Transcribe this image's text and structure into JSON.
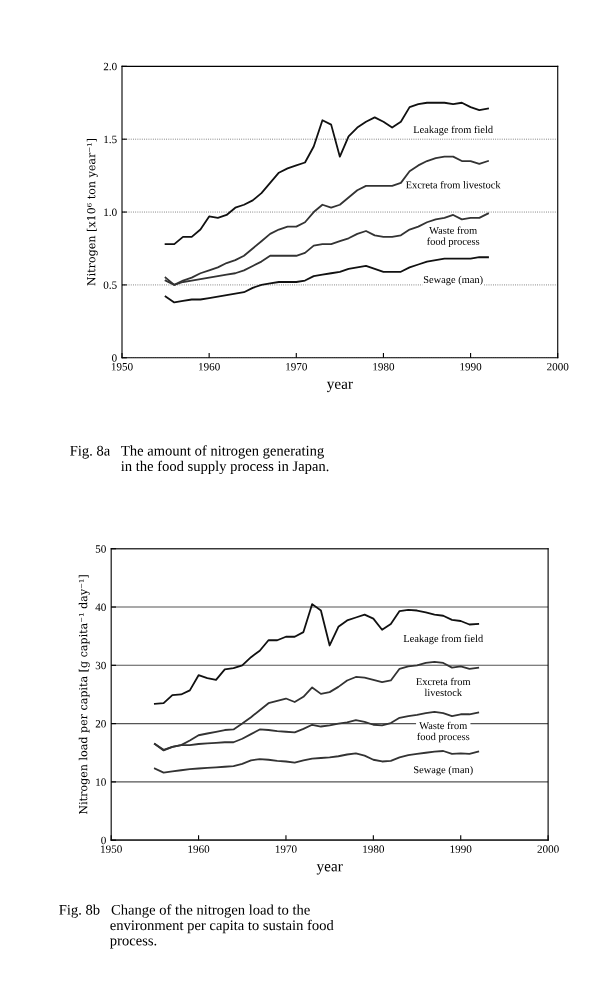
{
  "chart_data": [
    {
      "type": "line",
      "title": "Fig. 8a   The amount of nitrogen generating\n              in the food supply process in Japan.",
      "xlabel": "year",
      "ylabel": "Nitrogen [x10⁶ ton year⁻¹]",
      "xlim": [
        1950,
        2000
      ],
      "xticks": [
        1950,
        1960,
        1970,
        1980,
        1990,
        2000
      ],
      "ylim": [
        0,
        2.0
      ],
      "yticks": [
        0,
        0.5,
        {
          "value": 1.0,
          "label": "1.0"
        },
        1.5,
        {
          "value": 2.0,
          "label": "2.0"
        }
      ],
      "grid": "y",
      "x": [
        1955,
        1956,
        1957,
        1958,
        1959,
        1960,
        1961,
        1962,
        1963,
        1964,
        1965,
        1966,
        1967,
        1968,
        1969,
        1970,
        1971,
        1972,
        1973,
        1974,
        1975,
        1976,
        1977,
        1978,
        1979,
        1980,
        1981,
        1982,
        1983,
        1984,
        1985,
        1986,
        1987,
        1988,
        1989,
        1990,
        1991,
        1992
      ],
      "series": [
        {
          "name": "Leakage from field",
          "color": "#111111",
          "values": [
            0.78,
            0.78,
            0.83,
            0.83,
            0.88,
            0.97,
            0.96,
            0.98,
            1.03,
            1.05,
            1.08,
            1.13,
            1.2,
            1.27,
            1.3,
            1.32,
            1.34,
            1.45,
            1.63,
            1.6,
            1.38,
            1.52,
            1.58,
            1.62,
            1.65,
            1.62,
            1.58,
            1.62,
            1.72,
            1.74,
            1.75,
            1.75,
            1.75,
            1.74,
            1.75,
            1.72,
            1.7,
            1.71
          ]
        },
        {
          "name": "Excreta from livestock",
          "color": "#333333",
          "values": [
            0.55,
            0.5,
            0.53,
            0.55,
            0.58,
            0.6,
            0.62,
            0.65,
            0.67,
            0.7,
            0.75,
            0.8,
            0.85,
            0.88,
            0.9,
            0.9,
            0.93,
            1.0,
            1.05,
            1.03,
            1.05,
            1.1,
            1.15,
            1.18,
            1.18,
            1.18,
            1.18,
            1.2,
            1.28,
            1.32,
            1.35,
            1.37,
            1.38,
            1.38,
            1.35,
            1.35,
            1.33,
            1.35
          ]
        },
        {
          "name": "Waste from\nfood process",
          "color": "#333333",
          "values": [
            0.53,
            0.5,
            0.52,
            0.53,
            0.54,
            0.55,
            0.56,
            0.57,
            0.58,
            0.6,
            0.63,
            0.66,
            0.7,
            0.7,
            0.7,
            0.7,
            0.72,
            0.77,
            0.78,
            0.78,
            0.8,
            0.82,
            0.85,
            0.87,
            0.84,
            0.83,
            0.83,
            0.84,
            0.88,
            0.9,
            0.93,
            0.95,
            0.96,
            0.98,
            0.95,
            0.96,
            0.96,
            0.99
          ]
        },
        {
          "name": "Sewage (man)",
          "color": "#111111",
          "values": [
            0.42,
            0.38,
            0.39,
            0.4,
            0.4,
            0.41,
            0.42,
            0.43,
            0.44,
            0.45,
            0.48,
            0.5,
            0.51,
            0.52,
            0.52,
            0.52,
            0.53,
            0.56,
            0.57,
            0.58,
            0.59,
            0.61,
            0.62,
            0.63,
            0.61,
            0.59,
            0.59,
            0.59,
            0.62,
            0.64,
            0.66,
            0.67,
            0.68,
            0.68,
            0.68,
            0.68,
            0.69,
            0.69
          ]
        }
      ],
      "legend": false
    },
    {
      "type": "line",
      "title": "Fig. 8b   Change of the nitrogen load to the\n              environment per capita to sustain food\n              process.",
      "xlabel": "year",
      "ylabel": "Nitrogen load per capita [g capita⁻¹ day⁻¹]",
      "xlim": [
        1950,
        2000
      ],
      "xticks": [
        1950,
        1960,
        1970,
        1980,
        1990,
        2000
      ],
      "ylim": [
        0,
        50
      ],
      "yticks": [
        0,
        10,
        20,
        30,
        40,
        50
      ],
      "grid": "y",
      "x": [
        1955,
        1956,
        1957,
        1958,
        1959,
        1960,
        1961,
        1962,
        1963,
        1964,
        1965,
        1966,
        1967,
        1968,
        1969,
        1970,
        1971,
        1972,
        1973,
        1974,
        1975,
        1976,
        1977,
        1978,
        1979,
        1980,
        1981,
        1982,
        1983,
        1984,
        1985,
        1986,
        1987,
        1988,
        1989,
        1990,
        1991,
        1992
      ],
      "series": [
        {
          "name": "Leakage from field",
          "color": "#111111",
          "values": [
            23.4,
            23.5,
            24.9,
            25,
            25.7,
            28.3,
            27.8,
            27.5,
            29.3,
            29.5,
            30,
            31.4,
            32.5,
            34.3,
            34.3,
            34.9,
            34.9,
            35.7,
            40.5,
            39.4,
            33.4,
            36.6,
            37.7,
            38.2,
            38.7,
            38,
            36.1,
            37.1,
            39.3,
            39.5,
            39.4,
            39.1,
            38.7,
            38.5,
            37.8,
            37.6,
            37,
            37.1
          ]
        },
        {
          "name": "Excreta from\nlivestock",
          "color": "#333333",
          "values": [
            16.5,
            15.4,
            16,
            16.3,
            17.1,
            18,
            18.3,
            18.6,
            18.9,
            19,
            20,
            21.1,
            22.3,
            23.5,
            23.9,
            24.3,
            23.7,
            24.6,
            26.2,
            25.1,
            25.4,
            26.3,
            27.4,
            28,
            27.9,
            27.5,
            27.1,
            27.4,
            29.4,
            29.8,
            30,
            30.4,
            30.6,
            30.4,
            29.6,
            29.8,
            29.4,
            29.6
          ]
        },
        {
          "name": "Waste from\nfood process",
          "color": "#333333",
          "values": [
            16.5,
            15.5,
            16,
            16.3,
            16.3,
            16.5,
            16.6,
            16.7,
            16.8,
            16.8,
            17.4,
            18.2,
            19,
            18.9,
            18.7,
            18.6,
            18.5,
            19.1,
            19.8,
            19.5,
            19.7,
            20,
            20.2,
            20.6,
            20.3,
            19.8,
            19.7,
            20.1,
            21,
            21.3,
            21.5,
            21.8,
            22,
            21.8,
            21.3,
            21.6,
            21.6,
            21.9
          ]
        },
        {
          "name": "Sewage (man)",
          "color": "#333333",
          "values": [
            12.3,
            11.6,
            11.8,
            12,
            12.2,
            12.3,
            12.4,
            12.5,
            12.6,
            12.7,
            13.1,
            13.7,
            13.9,
            13.8,
            13.6,
            13.5,
            13.3,
            13.7,
            14,
            14.1,
            14.2,
            14.4,
            14.7,
            14.9,
            14.5,
            13.8,
            13.5,
            13.6,
            14.2,
            14.6,
            14.8,
            15,
            15.2,
            15.3,
            14.8,
            14.9,
            14.8,
            15.2
          ]
        }
      ],
      "legend": false
    }
  ]
}
